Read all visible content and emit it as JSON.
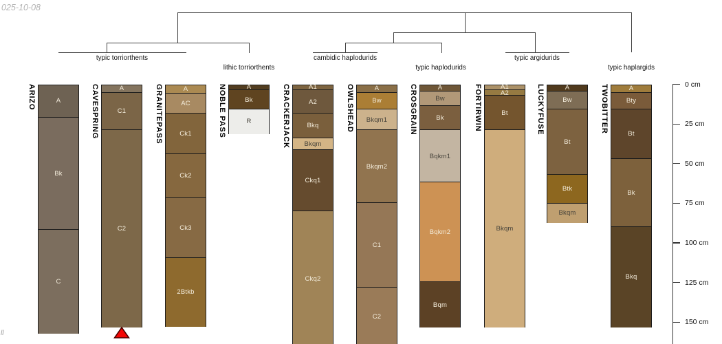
{
  "figure": {
    "type": "soil-profile-dendrogram",
    "date_stamp": "025-10-08",
    "corner_mark": "ll"
  },
  "colors": {
    "marker_red": "#f40604",
    "marker_outline": "#4d0000",
    "tree_line": "#3f3f3f",
    "light_label": "#f3ecdb",
    "dark_label": "#45423a"
  },
  "dendrogram": {
    "groups": [
      {
        "label": "typic torriorthents",
        "members": [
          "ARIZO",
          "CAVESPRING",
          "GRANITEPASS"
        ]
      },
      {
        "label": "lithic torriorthents",
        "members": [
          "NOBLE PASS"
        ]
      },
      {
        "label": "cambidic haplodurids",
        "members": [
          "CRACKERJACK",
          "OWLSHEAD"
        ]
      },
      {
        "label": "typic haplodurids",
        "members": [
          "CROSGRAIN"
        ]
      },
      {
        "label": "typic argidurids",
        "members": [
          "FORTIRWIN",
          "LUCKYFUSE"
        ]
      },
      {
        "label": "typic haplargids",
        "members": [
          "TWOBITTER"
        ]
      }
    ]
  },
  "depth_axis": {
    "unit": "cm",
    "tick_values": [
      0,
      25,
      50,
      75,
      100,
      125,
      150
    ],
    "tick_labels": [
      "0 cm",
      "25 cm",
      "50 cm",
      "75 cm",
      "100 cm",
      "125 cm",
      "150 cm"
    ]
  },
  "profiles": [
    {
      "series": "ARIZO",
      "horizons": [
        {
          "name": "A",
          "top_cm": 0,
          "bottom_cm": 20,
          "color": "#6e6253"
        },
        {
          "name": "Bk",
          "top_cm": 20,
          "bottom_cm": 91,
          "color": "#7a6c5e"
        },
        {
          "name": "C",
          "top_cm": 91,
          "bottom_cm": 156,
          "color": "#7c6e5e"
        }
      ]
    },
    {
      "series": "CAVESPRING",
      "marker": "red-triangle",
      "horizons": [
        {
          "name": "A",
          "top_cm": 0,
          "bottom_cm": 4.5,
          "color": "#84745e"
        },
        {
          "name": "C1",
          "top_cm": 4.5,
          "bottom_cm": 28,
          "color": "#7b6547"
        },
        {
          "name": "C2",
          "top_cm": 28,
          "bottom_cm": 152,
          "color": "#7d6849"
        }
      ]
    },
    {
      "series": "GRANITEPASS",
      "horizons": [
        {
          "name": "A",
          "top_cm": 0,
          "bottom_cm": 5,
          "color": "#ab8a52"
        },
        {
          "name": "AC",
          "top_cm": 5,
          "bottom_cm": 17.5,
          "color": "#a88a62"
        },
        {
          "name": "Ck1",
          "top_cm": 17.5,
          "bottom_cm": 43,
          "color": "#82653c"
        },
        {
          "name": "Ck2",
          "top_cm": 43,
          "bottom_cm": 71,
          "color": "#86683f"
        },
        {
          "name": "Ck3",
          "top_cm": 71,
          "bottom_cm": 108.5,
          "color": "#876a44"
        },
        {
          "name": "2Btkb",
          "top_cm": 108.5,
          "bottom_cm": 151.5,
          "color": "#8e6a2e"
        }
      ]
    },
    {
      "series": "NOBLE PASS",
      "horizons": [
        {
          "name": "A",
          "top_cm": 0,
          "bottom_cm": 3,
          "color": "#523d20"
        },
        {
          "name": "Bk",
          "top_cm": 3,
          "bottom_cm": 15,
          "color": "#5f4420"
        },
        {
          "name": "R",
          "top_cm": 15,
          "bottom_cm": 30,
          "color": "#ededea",
          "dark_label": true
        }
      ]
    },
    {
      "series": "CRACKERJACK",
      "horizons": [
        {
          "name": "A1",
          "top_cm": 0,
          "bottom_cm": 3,
          "color": "#7d6440"
        },
        {
          "name": "A2",
          "top_cm": 3,
          "bottom_cm": 17.5,
          "color": "#6e583d"
        },
        {
          "name": "Bkq",
          "top_cm": 17.5,
          "bottom_cm": 33,
          "color": "#7a5f3c"
        },
        {
          "name": "Bkqm",
          "top_cm": 33,
          "bottom_cm": 40.5,
          "color": "#d4b586",
          "dark_label": true
        },
        {
          "name": "Ckq1",
          "top_cm": 40.5,
          "bottom_cm": 79,
          "color": "#654b2e"
        },
        {
          "name": "Ckq2",
          "top_cm": 79,
          "bottom_cm": 164,
          "color": "#a08457"
        }
      ]
    },
    {
      "series": "OWLSHEAD",
      "horizons": [
        {
          "name": "A",
          "top_cm": 0,
          "bottom_cm": 4.5,
          "color": "#8a6f47"
        },
        {
          "name": "Bw",
          "top_cm": 4.5,
          "bottom_cm": 15,
          "color": "#ab7e35"
        },
        {
          "name": "Bkqm1",
          "top_cm": 15,
          "bottom_cm": 28,
          "color": "#ccb28c",
          "dark_label": true
        },
        {
          "name": "Bkqm2",
          "top_cm": 28,
          "bottom_cm": 74,
          "color": "#91744f"
        },
        {
          "name": "C1",
          "top_cm": 74,
          "bottom_cm": 127.5,
          "color": "#957756"
        },
        {
          "name": "C2",
          "top_cm": 127.5,
          "bottom_cm": 164,
          "color": "#9a7b58"
        }
      ]
    },
    {
      "series": "CROSGRAIN",
      "horizons": [
        {
          "name": "A",
          "top_cm": 0,
          "bottom_cm": 3.5,
          "color": "#6e5637"
        },
        {
          "name": "Bw",
          "top_cm": 3.5,
          "bottom_cm": 13,
          "color": "#b19878",
          "dark_label": true
        },
        {
          "name": "Bk",
          "top_cm": 13,
          "bottom_cm": 28,
          "color": "#7b5f3f"
        },
        {
          "name": "Bqkm1",
          "top_cm": 28,
          "bottom_cm": 61,
          "color": "#c3b5a2",
          "dark_label": true
        },
        {
          "name": "Bqkm2",
          "top_cm": 61,
          "bottom_cm": 124,
          "color": "#cd9254"
        },
        {
          "name": "Bqm",
          "top_cm": 124,
          "bottom_cm": 152,
          "color": "#5c4125"
        }
      ]
    },
    {
      "series": "FORTIRWIN",
      "horizons": [
        {
          "name": "A1",
          "top_cm": 0,
          "bottom_cm": 3,
          "color": "#ab9168"
        },
        {
          "name": "A2",
          "top_cm": 3,
          "bottom_cm": 6.5,
          "color": "#967a42"
        },
        {
          "name": "Bt",
          "top_cm": 6.5,
          "bottom_cm": 28,
          "color": "#74552e"
        },
        {
          "name": "Bkqm",
          "top_cm": 28,
          "bottom_cm": 152,
          "color": "#cfad7c",
          "dark_label": true
        }
      ]
    },
    {
      "series": "LUCKYFUSE",
      "horizons": [
        {
          "name": "A",
          "top_cm": 0,
          "bottom_cm": 3.5,
          "color": "#503a1d"
        },
        {
          "name": "Bw",
          "top_cm": 3.5,
          "bottom_cm": 15,
          "color": "#7e6d55"
        },
        {
          "name": "Bt",
          "top_cm": 15,
          "bottom_cm": 56,
          "color": "#7d6240"
        },
        {
          "name": "Btk",
          "top_cm": 56,
          "bottom_cm": 74.5,
          "color": "#8d671f"
        },
        {
          "name": "Bkqm",
          "top_cm": 74.5,
          "bottom_cm": 86,
          "color": "#bf9f70",
          "dark_label": true
        }
      ]
    },
    {
      "series": "TWOBITTER",
      "horizons": [
        {
          "name": "A",
          "top_cm": 0,
          "bottom_cm": 4.5,
          "color": "#9f7c3c"
        },
        {
          "name": "Bty",
          "top_cm": 4.5,
          "bottom_cm": 15,
          "color": "#7a5b3a"
        },
        {
          "name": "Bt",
          "top_cm": 15,
          "bottom_cm": 46,
          "color": "#5e452b"
        },
        {
          "name": "Bk",
          "top_cm": 46,
          "bottom_cm": 89,
          "color": "#7d613c"
        },
        {
          "name": "Bkq",
          "top_cm": 89,
          "bottom_cm": 152,
          "color": "#5a4426"
        }
      ]
    }
  ]
}
